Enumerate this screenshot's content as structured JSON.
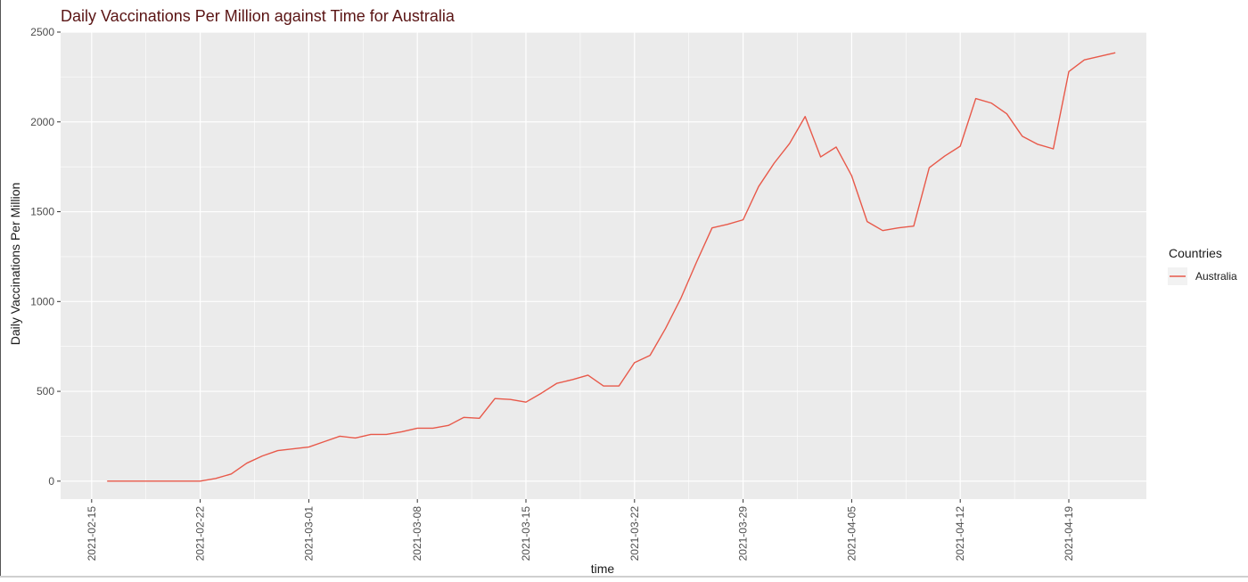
{
  "chart_data": {
    "type": "line",
    "title": "Daily Vaccinations Per Million against Time for Australia",
    "xlabel": "time",
    "ylabel": "Daily Vaccinations Per Million",
    "xlim": [
      "2021-02-13",
      "2021-04-24"
    ],
    "ylim": [
      -100,
      2500
    ],
    "y_ticks": [
      0,
      500,
      1000,
      1500,
      2000,
      2500
    ],
    "x_ticks": [
      "2021-02-15",
      "2021-02-22",
      "2021-03-01",
      "2021-03-08",
      "2021-03-15",
      "2021-03-22",
      "2021-03-29",
      "2021-04-05",
      "2021-04-12",
      "2021-04-19"
    ],
    "grid": true,
    "legend": {
      "title": "Countries",
      "position": "right",
      "entries": [
        "Australia"
      ]
    },
    "colors": {
      "series": "#E8594A",
      "panel": "#EBEBEB",
      "grid": "#FFFFFF",
      "title": "#5A1414",
      "axis_text": "#4D4D4D"
    },
    "series": [
      {
        "name": "Australia",
        "x": [
          "2021-02-16",
          "2021-02-17",
          "2021-02-18",
          "2021-02-19",
          "2021-02-20",
          "2021-02-21",
          "2021-02-22",
          "2021-02-23",
          "2021-02-24",
          "2021-02-25",
          "2021-02-26",
          "2021-02-27",
          "2021-02-28",
          "2021-03-01",
          "2021-03-02",
          "2021-03-03",
          "2021-03-04",
          "2021-03-05",
          "2021-03-06",
          "2021-03-07",
          "2021-03-08",
          "2021-03-09",
          "2021-03-10",
          "2021-03-11",
          "2021-03-12",
          "2021-03-13",
          "2021-03-14",
          "2021-03-15",
          "2021-03-16",
          "2021-03-17",
          "2021-03-18",
          "2021-03-19",
          "2021-03-20",
          "2021-03-21",
          "2021-03-22",
          "2021-03-23",
          "2021-03-24",
          "2021-03-25",
          "2021-03-26",
          "2021-03-27",
          "2021-03-28",
          "2021-03-29",
          "2021-03-30",
          "2021-03-31",
          "2021-04-01",
          "2021-04-02",
          "2021-04-03",
          "2021-04-04",
          "2021-04-05",
          "2021-04-06",
          "2021-04-07",
          "2021-04-08",
          "2021-04-09",
          "2021-04-10",
          "2021-04-11",
          "2021-04-12",
          "2021-04-13",
          "2021-04-14",
          "2021-04-15",
          "2021-04-16",
          "2021-04-17",
          "2021-04-18",
          "2021-04-19",
          "2021-04-20",
          "2021-04-21",
          "2021-04-22"
        ],
        "values": [
          0,
          0,
          0,
          0,
          0,
          0,
          0,
          15,
          40,
          100,
          140,
          170,
          180,
          190,
          220,
          250,
          240,
          260,
          260,
          275,
          295,
          295,
          310,
          355,
          350,
          460,
          455,
          440,
          490,
          545,
          565,
          590,
          530,
          530,
          660,
          700,
          850,
          1020,
          1220,
          1410,
          1430,
          1455,
          1640,
          1770,
          1880,
          2030,
          1805,
          1860,
          1700,
          1445,
          1395,
          1410,
          1420,
          1745,
          1810,
          1865,
          2130,
          2105,
          2045,
          1920,
          1875,
          1850,
          2280,
          2345,
          2365,
          2385
        ]
      }
    ]
  }
}
